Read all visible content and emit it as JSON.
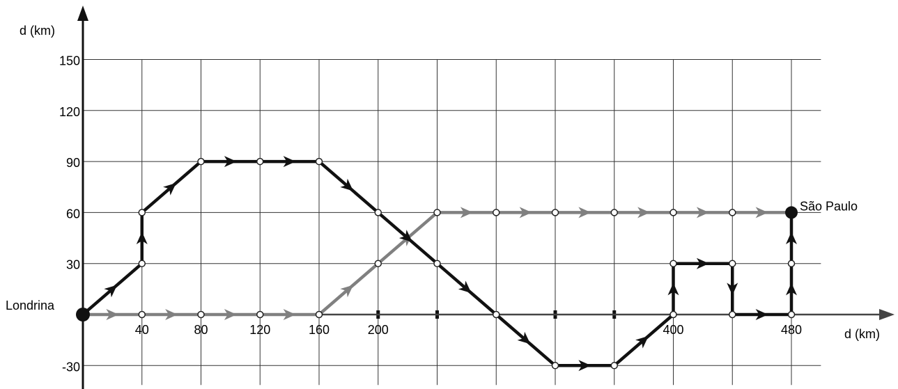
{
  "axes": {
    "x_label": "d (km)",
    "y_label": "d (km)",
    "x_tick_labels": [
      {
        "v": 40,
        "t": "40"
      },
      {
        "v": 80,
        "t": "80"
      },
      {
        "v": 120,
        "t": "120"
      },
      {
        "v": 160,
        "t": "160"
      },
      {
        "v": 200,
        "t": "200"
      },
      {
        "v": 400,
        "t": "400"
      },
      {
        "v": 480,
        "t": "480"
      }
    ],
    "y_tick_labels": [
      {
        "v": 150,
        "t": "150"
      },
      {
        "v": 120,
        "t": "120"
      },
      {
        "v": 90,
        "t": "90"
      },
      {
        "v": 60,
        "t": "60"
      },
      {
        "v": 30,
        "t": "30"
      },
      {
        "v": -30,
        "t": "-30"
      }
    ],
    "x_grid": [
      40,
      80,
      120,
      160,
      200,
      240,
      280,
      320,
      360,
      400,
      440,
      480
    ],
    "y_grid": [
      150,
      120,
      90,
      60,
      30,
      -30
    ],
    "x_range": [
      0,
      480
    ],
    "y_range": [
      -30,
      150
    ]
  },
  "places": {
    "start": {
      "name": "Londrina",
      "x": 0,
      "y": 0
    },
    "end": {
      "name": "São Paulo",
      "x": 480,
      "y": 60
    }
  },
  "paths": {
    "gray": {
      "color": "#808080",
      "points": [
        [
          0,
          0
        ],
        [
          40,
          0
        ],
        [
          80,
          0
        ],
        [
          120,
          0
        ],
        [
          160,
          0
        ],
        [
          200,
          30
        ],
        [
          240,
          60
        ],
        [
          280,
          60
        ],
        [
          320,
          60
        ],
        [
          360,
          60
        ],
        [
          400,
          60
        ],
        [
          440,
          60
        ],
        [
          480,
          60
        ]
      ]
    },
    "black": {
      "color": "#111111",
      "points": [
        [
          0,
          0
        ],
        [
          40,
          30
        ],
        [
          40,
          60
        ],
        [
          80,
          90
        ],
        [
          120,
          90
        ],
        [
          160,
          90
        ],
        [
          200,
          60
        ],
        [
          240,
          30
        ],
        [
          280,
          0
        ],
        [
          320,
          -30
        ],
        [
          360,
          -30
        ],
        [
          400,
          0
        ],
        [
          400,
          30
        ],
        [
          440,
          30
        ],
        [
          440,
          0
        ],
        [
          480,
          0
        ],
        [
          480,
          30
        ],
        [
          480,
          60
        ]
      ]
    }
  }
}
